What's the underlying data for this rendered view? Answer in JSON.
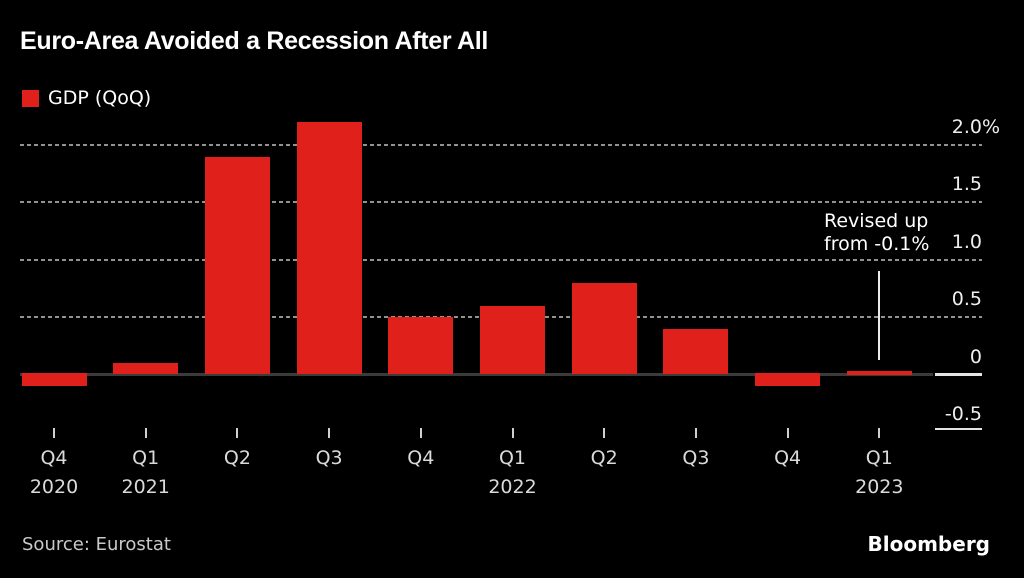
{
  "title": "Euro-Area Avoided a Recession After All",
  "legend": {
    "label": "GDP (QoQ)",
    "color": "#e0201a"
  },
  "annotation": {
    "line1": "Revised up",
    "line2": "from -0.1%"
  },
  "source": "Source: Eurostat",
  "brand": "Bloomberg",
  "colors": {
    "background": "#000000",
    "bar_red": "#e0201a",
    "gridline": "#929292",
    "zero_line": "#3b3b3b",
    "axis_text": "#eeeeee"
  },
  "chart_data": {
    "type": "bar",
    "title": "Euro-Area Avoided a Recession After All",
    "categories": [
      "Q4 2020",
      "Q1 2021",
      "Q2 2021",
      "Q3 2021",
      "Q4 2021",
      "Q1 2022",
      "Q2 2022",
      "Q3 2022",
      "Q4 2022",
      "Q1 2023"
    ],
    "series": [
      {
        "name": "GDP (QoQ)",
        "color": "#e0201a",
        "values": [
          -0.1,
          0.1,
          1.9,
          2.2,
          0.5,
          0.6,
          0.8,
          0.4,
          -0.1,
          0.0
        ]
      }
    ],
    "x_tick_quarters": [
      "Q4",
      "Q1",
      "Q2",
      "Q3",
      "Q4",
      "Q1",
      "Q2",
      "Q3",
      "Q4",
      "Q1"
    ],
    "x_tick_years": [
      "2020",
      "2021",
      "",
      "",
      "",
      "2022",
      "",
      "",
      "",
      "2023"
    ],
    "y_ticks": [
      {
        "label": "2.0",
        "suffix": "%",
        "value": 2.0
      },
      {
        "label": "1.5",
        "suffix": "",
        "value": 1.5
      },
      {
        "label": "1.0",
        "suffix": "",
        "value": 1.0
      },
      {
        "label": "0.5",
        "suffix": "",
        "value": 0.5
      },
      {
        "label": "0",
        "suffix": "",
        "value": 0.0
      },
      {
        "label": "-0.5",
        "suffix": "",
        "value": -0.5
      }
    ],
    "grid_values": [
      2.0,
      1.5,
      1.0,
      0.5
    ],
    "ylim": [
      -0.5,
      2.3
    ],
    "ylabel": "%",
    "legend_position": "top-left",
    "grid": "dotted-horizontal",
    "annotation": {
      "text": "Revised up from -0.1%",
      "target_category": "Q1 2023",
      "target_value": 0.0
    }
  }
}
